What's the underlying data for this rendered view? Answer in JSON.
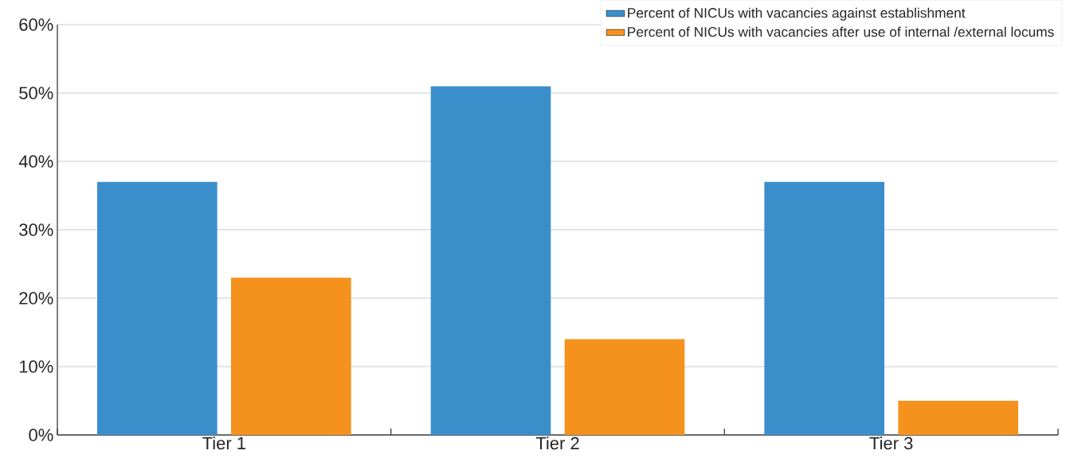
{
  "chart_data": {
    "type": "bar",
    "categories": [
      "Tier 1",
      "Tier 2",
      "Tier 3"
    ],
    "series": [
      {
        "name": "Percent of NICUs with vacancies against establishment",
        "color": "#3a8fcb",
        "values": [
          37,
          51,
          37
        ]
      },
      {
        "name": "Percent of NICUs with vacancies after use of internal /external locums",
        "color": "#f5921e",
        "values": [
          23,
          14,
          5
        ]
      }
    ],
    "ylim": [
      0,
      60
    ],
    "yticks": [
      {
        "value": 0,
        "label": "0%"
      },
      {
        "value": 10,
        "label": "10%"
      },
      {
        "value": 20,
        "label": "20%"
      },
      {
        "value": 30,
        "label": "30%"
      },
      {
        "value": 40,
        "label": "40%"
      },
      {
        "value": 50,
        "label": "50%"
      },
      {
        "value": 60,
        "label": "60%"
      }
    ],
    "grid": "y",
    "legend": "top right"
  }
}
